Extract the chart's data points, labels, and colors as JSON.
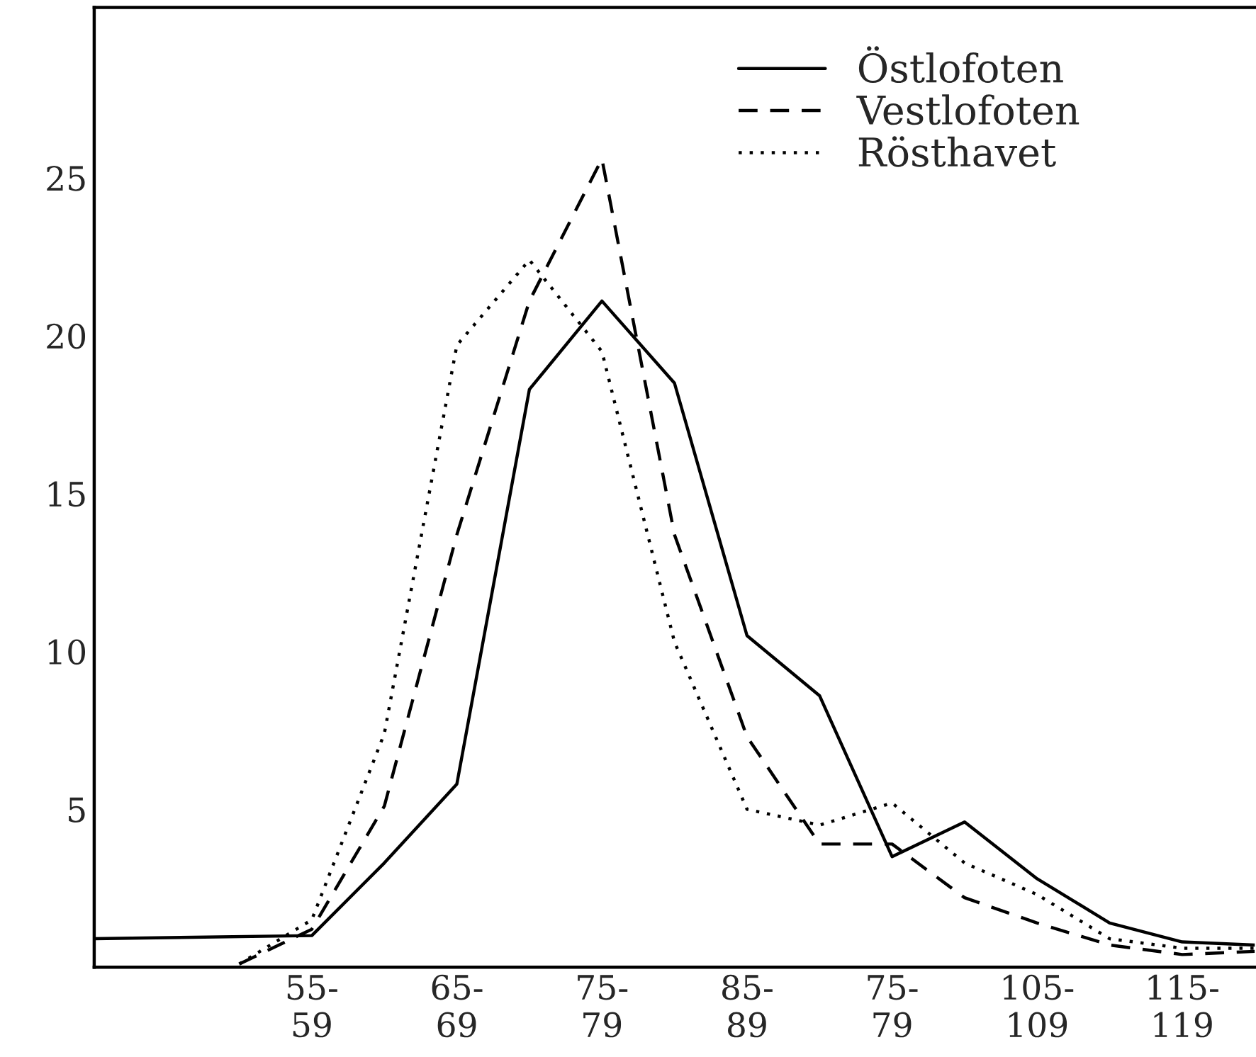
{
  "chart_data": {
    "type": "line",
    "categories": [
      null,
      null,
      null,
      "55-\n59",
      null,
      "65-\n69",
      null,
      "75-\n79",
      null,
      "85-\n89",
      null,
      "75-\n79",
      null,
      "105-\n109",
      null,
      "115-\n119",
      null
    ],
    "ylim": [
      0,
      30.4
    ],
    "yticks": [
      5,
      10,
      15,
      20,
      25
    ],
    "grid": false,
    "legend": "top right",
    "marker": "none",
    "series": [
      {
        "name": "Östlofoten",
        "color": "#000000",
        "line_style": "solid",
        "values": [
          0.9,
          null,
          null,
          1.0,
          3.3,
          5.8,
          18.3,
          21.1,
          18.5,
          10.5,
          8.6,
          3.5,
          4.6,
          2.8,
          1.4,
          0.8,
          0.7
        ]
      },
      {
        "name": "Vestlofoten",
        "color": "#000000",
        "line_style": "dashed",
        "values": [
          null,
          null,
          0.1,
          1.2,
          5.1,
          13.7,
          21.1,
          25.6,
          13.7,
          7.3,
          3.9,
          3.9,
          2.2,
          1.4,
          0.7,
          0.4,
          0.5
        ]
      },
      {
        "name": "Rösthavet",
        "color": "#000000",
        "line_style": "dotted",
        "values": [
          null,
          null,
          0.1,
          1.5,
          7.4,
          19.7,
          22.4,
          19.5,
          10.3,
          5.0,
          4.5,
          5.2,
          3.3,
          2.3,
          0.9,
          0.6,
          0.6
        ]
      }
    ]
  }
}
